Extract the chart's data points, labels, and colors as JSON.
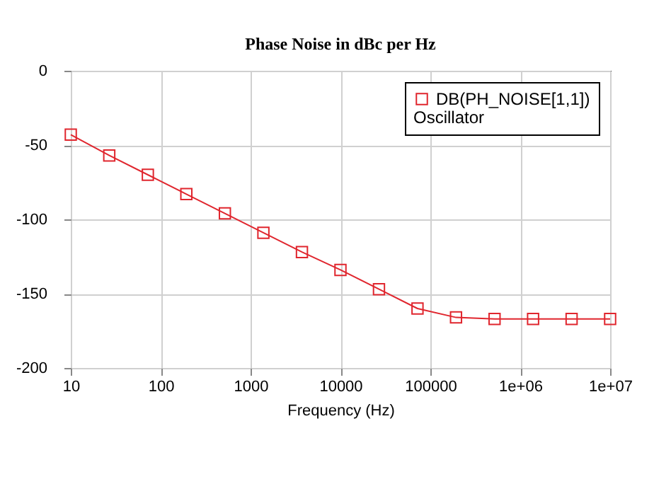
{
  "chart_data": {
    "type": "line",
    "title": "Phase Noise in dBc per Hz",
    "xlabel": "Frequency (Hz)",
    "x": [
      10,
      26.8,
      72,
      193,
      518,
      1389,
      3728,
      10000,
      26827,
      71969,
      193070,
      517947,
      1389495,
      3727594,
      10000000
    ],
    "series": [
      {
        "name": "DB(PH_NOISE[1,1])",
        "color": "#e0262e",
        "values": [
          -43,
          -57,
          -70,
          -83,
          -96,
          -109,
          -122,
          -134,
          -147,
          -160,
          -166,
          -167,
          -167,
          -167,
          -167
        ]
      }
    ],
    "legend_title": "Oscillator",
    "log": "x",
    "xlim": [
      10,
      10000000
    ],
    "xticks": [
      10,
      100,
      1000,
      10000,
      100000,
      {
        "value": 1000000,
        "label": "1e+06"
      },
      {
        "value": 10000000,
        "label": "1e+07"
      }
    ],
    "ylim": [
      -200,
      0
    ],
    "yticks": [
      -200,
      -150,
      -100,
      -50,
      0
    ],
    "grid": true,
    "legend": "top right",
    "marker": "square",
    "line_style": "solid"
  }
}
